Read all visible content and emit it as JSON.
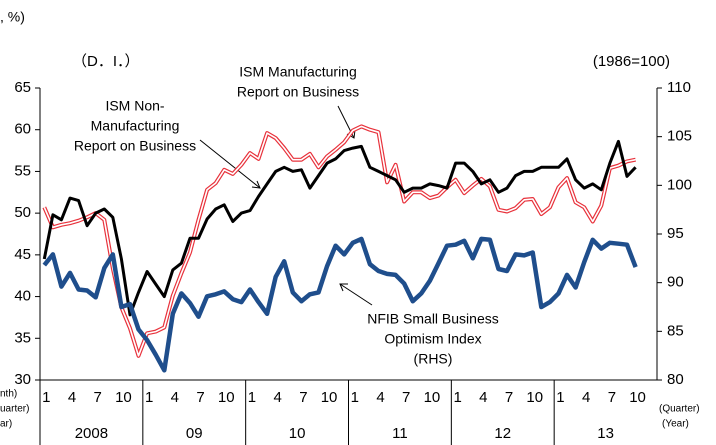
{
  "chart_data": {
    "type": "line",
    "top_left_note": ", %)",
    "left_unit": "（D．I．）",
    "right_unit": "(1986=100)",
    "x_axis_left_labels": [
      "nth)",
      "uarter)",
      "ar)"
    ],
    "x_axis_right_labels": [
      "(Quarter)",
      "(Year)"
    ],
    "categories": [
      "1",
      null,
      null,
      "4",
      null,
      null,
      "7",
      null,
      null,
      "10",
      null,
      null,
      "1",
      null,
      null,
      "4",
      null,
      null,
      "7",
      null,
      null,
      "10",
      null,
      null,
      "1",
      null,
      null,
      "4",
      null,
      null,
      "7",
      null,
      null,
      "10",
      null,
      null,
      "1",
      null,
      null,
      "4",
      null,
      null,
      "7",
      null,
      null,
      "10",
      null,
      null,
      "1",
      null,
      null,
      "4",
      null,
      null,
      "7",
      null,
      null,
      "10",
      null,
      null,
      "1",
      null,
      null,
      "4",
      null,
      null,
      "7",
      null,
      null,
      "10",
      null,
      null
    ],
    "year_labels": [
      "2008",
      "09",
      "10",
      "11",
      "12",
      "13"
    ],
    "ylim": [
      30,
      65
    ],
    "yticks": [
      30,
      35,
      40,
      45,
      50,
      55,
      60,
      65
    ],
    "y2lim": [
      80,
      110
    ],
    "y2ticks": [
      80,
      85,
      90,
      95,
      100,
      105,
      110
    ],
    "series": [
      {
        "name": "ISM Manufacturing",
        "color": "#e8323c",
        "style": "double",
        "values": [
          50.7,
          48.3,
          48.6,
          48.8,
          49.1,
          49.5,
          50.0,
          49.2,
          43.4,
          38.7,
          36.2,
          32.9,
          35.6,
          35.8,
          36.3,
          40.1,
          42.8,
          45.3,
          49.2,
          52.8,
          53.6,
          55.2,
          54.7,
          55.8,
          57.2,
          56.5,
          59.6,
          59.0,
          57.8,
          56.4,
          56.4,
          57.1,
          55.5,
          56.8,
          57.6,
          58.5,
          59.9,
          60.4,
          60.0,
          59.7,
          53.7,
          55.8,
          51.4,
          52.5,
          52.5,
          51.8,
          52.1,
          53.1,
          54.0,
          52.4,
          53.3,
          54.1,
          53.2,
          50.4,
          50.2,
          50.6,
          51.6,
          51.7,
          49.9,
          50.7,
          53.1,
          54.2,
          51.3,
          50.7,
          49.0,
          50.9,
          55.4,
          55.7,
          56.2,
          56.4,
          null,
          null
        ]
      },
      {
        "name": "ISM Non-Manufacturing",
        "color": "#000000",
        "style": "solid",
        "values": [
          44.5,
          49.8,
          49.2,
          51.8,
          51.5,
          48.5,
          50.0,
          50.5,
          49.5,
          44.5,
          37.8,
          40.5,
          43.0,
          41.5,
          40.0,
          43.2,
          44.0,
          47.0,
          47.0,
          49.3,
          50.5,
          51.0,
          49.0,
          50.0,
          50.3,
          52.0,
          53.5,
          55.0,
          55.5,
          55.0,
          55.2,
          53.0,
          54.5,
          56.0,
          56.5,
          57.5,
          57.8,
          58.0,
          55.5,
          55.0,
          54.5,
          54.0,
          52.5,
          53.0,
          53.0,
          53.5,
          53.3,
          53.0,
          56.0,
          56.0,
          55.0,
          53.5,
          54.0,
          52.5,
          53.0,
          54.5,
          55.0,
          55.0,
          55.5,
          55.5,
          55.5,
          56.5,
          54.0,
          53.0,
          53.5,
          52.8,
          56.0,
          58.6,
          54.4,
          55.5,
          null,
          null
        ]
      },
      {
        "name": "NFIB Small Business Optimism Index",
        "color": "#1f4e8c",
        "style": "thick",
        "axis": "y2",
        "values": [
          91.8,
          92.9,
          89.6,
          91.0,
          89.3,
          89.2,
          88.5,
          91.5,
          92.9,
          87.5,
          87.8,
          85.2,
          84.1,
          82.6,
          81.0,
          86.8,
          88.9,
          87.9,
          86.5,
          88.6,
          88.8,
          89.1,
          88.3,
          88.0,
          89.3,
          88.0,
          86.8,
          90.6,
          92.2,
          89.0,
          88.1,
          88.8,
          89.0,
          91.7,
          93.8,
          92.9,
          94.1,
          94.5,
          91.9,
          91.2,
          90.9,
          90.8,
          89.9,
          88.1,
          88.9,
          90.2,
          92.0,
          93.8,
          93.9,
          94.3,
          92.5,
          94.5,
          94.4,
          91.4,
          91.2,
          92.9,
          92.8,
          93.1,
          87.5,
          88.0,
          88.9,
          90.8,
          89.5,
          92.1,
          94.4,
          93.5,
          94.1,
          94.0,
          93.9,
          91.6,
          null,
          null
        ]
      }
    ],
    "annotations": [
      {
        "lines": [
          "ISM Non-",
          "Manufacturing",
          "Report on Business"
        ]
      },
      {
        "lines": [
          "ISM Manufacturing",
          "Report on Business"
        ]
      },
      {
        "lines": [
          "NFIB Small Business",
          "Optimism Index",
          "(RHS)"
        ]
      }
    ]
  }
}
